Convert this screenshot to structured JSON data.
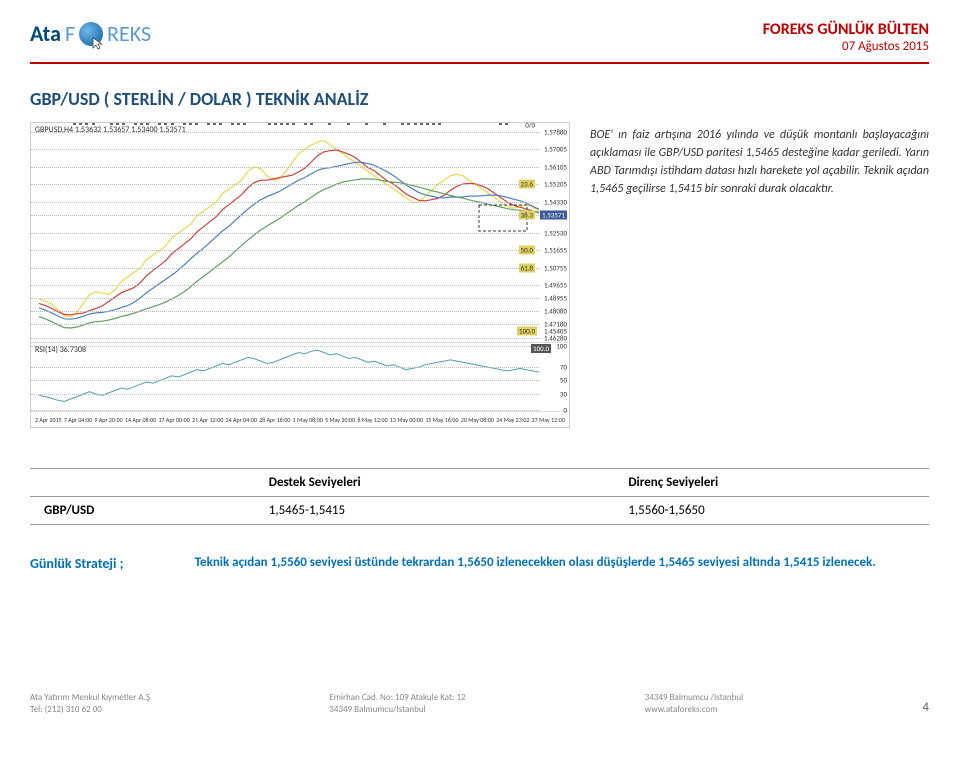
{
  "header": {
    "logo_a": "Ata",
    "logo_b_prefix": "F",
    "logo_b_suffix": "REKS",
    "bulletin_title": "FOREKS GÜNLÜK BÜLTEN",
    "bulletin_date": "07 Ağustos 2015"
  },
  "section_title": "GBP/USD ( STERLİN / DOLAR ) TEKNİK ANALİZ",
  "chart": {
    "code": "GBPUSD,H4 1.53632 1.53657 1.53400 1.53571",
    "rsi_label": "RSI(14) 36.7308",
    "y_ticks_upper": [
      {
        "label": "1.57880",
        "pos": 4
      },
      {
        "label": "1.57005",
        "pos": 12
      },
      {
        "label": "1.56105",
        "pos": 20
      },
      {
        "label": "1.55205",
        "pos": 28,
        "badge": "23.6"
      },
      {
        "label": "1.54330",
        "pos": 36
      },
      {
        "label": "1.53571",
        "pos": 42,
        "blue": true,
        "badge": "38.3"
      },
      {
        "label": "1.52530",
        "pos": 50
      },
      {
        "label": "1.51655",
        "pos": 58,
        "badge": "50.0"
      },
      {
        "label": "1.50755",
        "pos": 66,
        "badge": "61.8"
      },
      {
        "label": "1.49655",
        "pos": 74
      },
      {
        "label": "1.48955",
        "pos": 80
      },
      {
        "label": "1.48080",
        "pos": 86
      },
      {
        "label": "1.47180",
        "pos": 92
      },
      {
        "label": "1.46280",
        "pos": 98
      }
    ],
    "y_ticks_lower": [
      {
        "label": "100",
        "pos": 5,
        "box": "100.0"
      },
      {
        "label": "70",
        "pos": 35
      },
      {
        "label": "50",
        "pos": 55
      },
      {
        "label": "30",
        "pos": 75
      },
      {
        "label": "0",
        "pos": 98
      }
    ],
    "x_ticks": [
      "2 Apr 2015",
      "7 Apr 04:00",
      "9 Apr 20:00",
      "14 Apr 08:00",
      "17 Apr 00:00",
      "21 Apr 12:00",
      "24 Apr 04:00",
      "28 Apr 16:00",
      "1 May 08:00",
      "5 May 20:00",
      "8 May 12:00",
      "13 May 00:00",
      "15 May 16:00",
      "20 May 08:00",
      "24 May 23:02",
      "27 May 12:00"
    ],
    "ma_colors": {
      "yellow": "#e8d848",
      "red": "#d04040",
      "blue": "#5080c0",
      "green": "#60a060"
    }
  },
  "analysis_text": "BOE' ın faiz artışına 2016 yılında ve düşük montanlı başlayacağını açıklaması ile GBP/USD paritesi 1,5465 desteğine kadar geriledi. Yarın ABD Tarımdışı istihdam datası hızlı harekete yol açabilir. Teknik açıdan 1,5465 geçilirse 1,5415 bir sonraki durak olacaktır.",
  "levels": {
    "header_support": "Destek Seviyeleri",
    "header_resistance": "Direnç Seviyeleri",
    "pair": "GBP/USD",
    "support": "1,5465-1,5415",
    "resistance": "1,5560-1,5650"
  },
  "strategy": {
    "label": "Günlük Strateji ;",
    "text": "Teknik açıdan 1,5560 seviyesi üstünde tekrardan 1,5650 izlenecekken olası düşüşlerde 1,5465 seviyesi altında 1,5415 izlenecek."
  },
  "footer": {
    "c1a": "Ata Yatırım Menkul Kıymetler A.Ş",
    "c1b": "Tel: (212) 310 62 00",
    "c2a": "Emirhan Cad. No: 109 Atakule Kat: 12",
    "c2b": "34349 Balmumcu/Istanbul",
    "c3a": "34349 Balmumcu /Istanbul",
    "c3b": "www.ataforeks.com",
    "page": "4"
  }
}
